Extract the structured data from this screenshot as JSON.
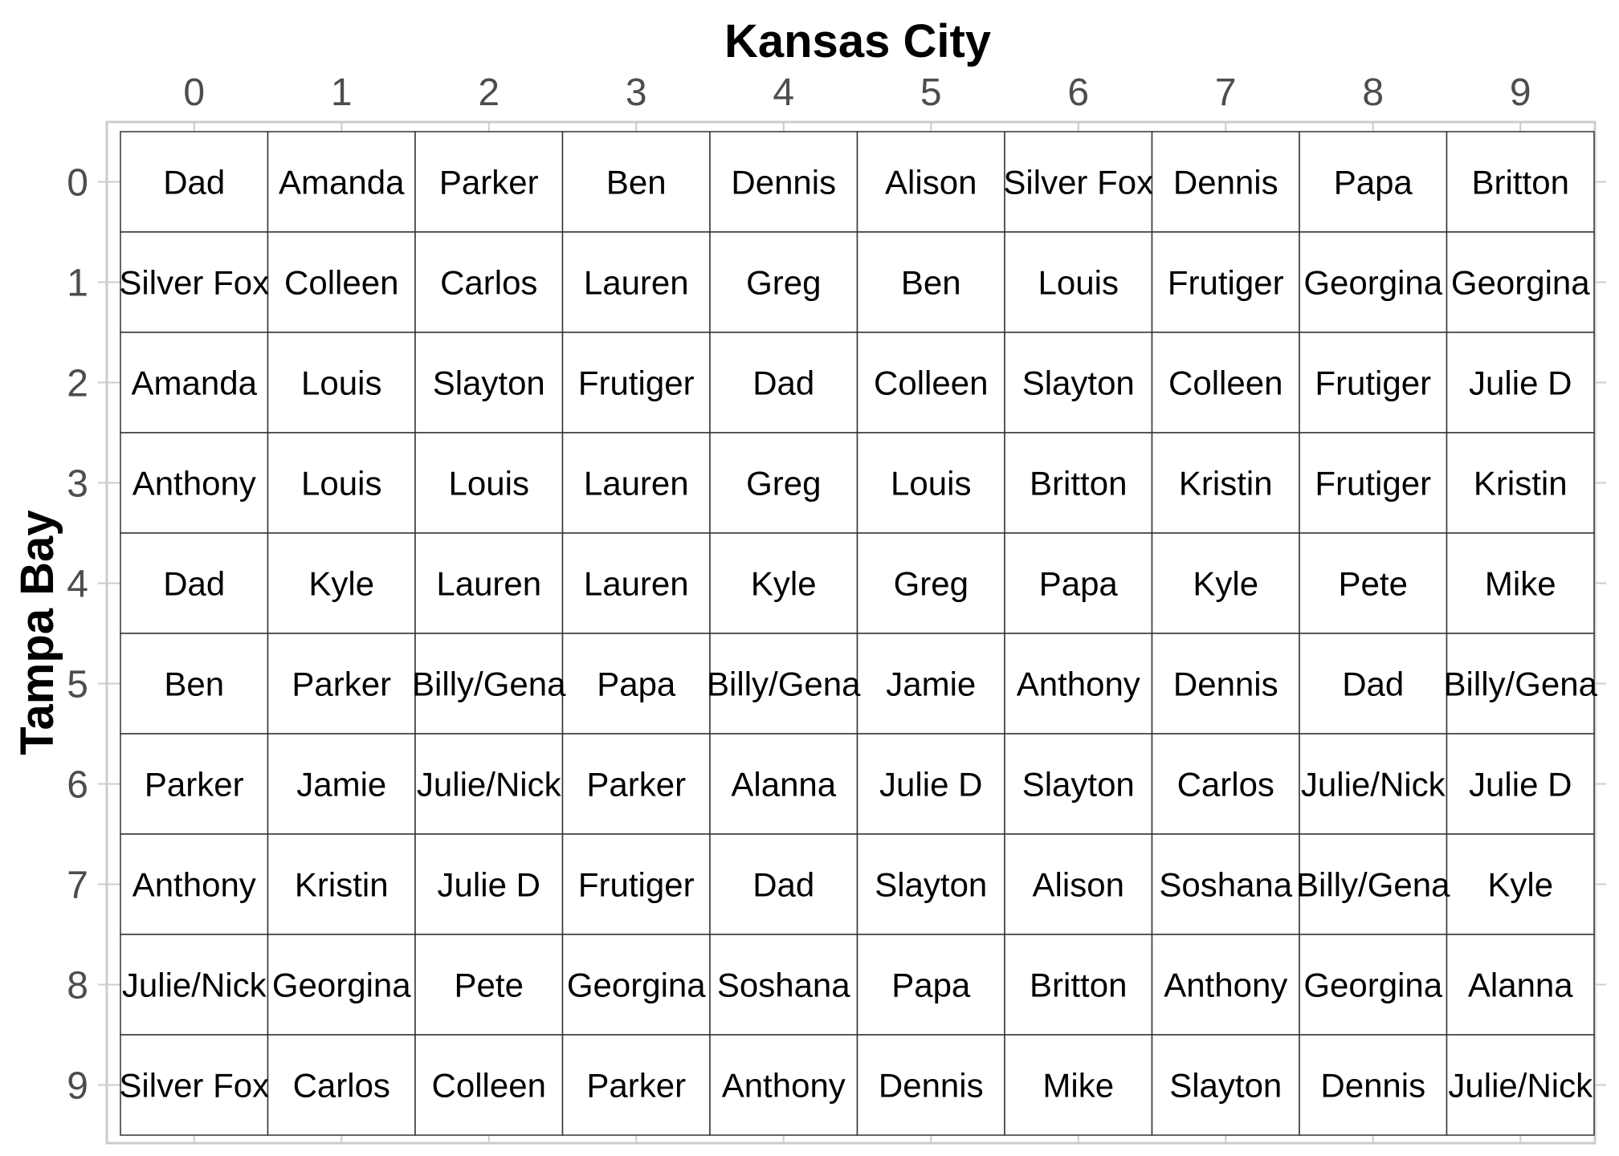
{
  "chart_data": {
    "type": "table",
    "xlabel": "Kansas City",
    "ylabel": "Tampa Bay",
    "x_ticks": [
      "0",
      "1",
      "2",
      "3",
      "4",
      "5",
      "6",
      "7",
      "8",
      "9"
    ],
    "y_ticks": [
      "0",
      "1",
      "2",
      "3",
      "4",
      "5",
      "6",
      "7",
      "8",
      "9"
    ],
    "x_axis_position": "top",
    "grid": true,
    "rows": [
      [
        "Dad",
        "Amanda",
        "Parker",
        "Ben",
        "Dennis",
        "Alison",
        "Silver Fox",
        "Dennis",
        "Papa",
        "Britton"
      ],
      [
        "Silver Fox",
        "Colleen",
        "Carlos",
        "Lauren",
        "Greg",
        "Ben",
        "Louis",
        "Frutiger",
        "Georgina",
        "Georgina"
      ],
      [
        "Amanda",
        "Louis",
        "Slayton",
        "Frutiger",
        "Dad",
        "Colleen",
        "Slayton",
        "Colleen",
        "Frutiger",
        "Julie D"
      ],
      [
        "Anthony",
        "Louis",
        "Louis",
        "Lauren",
        "Greg",
        "Louis",
        "Britton",
        "Kristin",
        "Frutiger",
        "Kristin"
      ],
      [
        "Dad",
        "Kyle",
        "Lauren",
        "Lauren",
        "Kyle",
        "Greg",
        "Papa",
        "Kyle",
        "Pete",
        "Mike"
      ],
      [
        "Ben",
        "Parker",
        "Billy/Gena",
        "Papa",
        "Billy/Gena",
        "Jamie",
        "Anthony",
        "Dennis",
        "Dad",
        "Billy/Gena"
      ],
      [
        "Parker",
        "Jamie",
        "Julie/Nick",
        "Parker",
        "Alanna",
        "Julie D",
        "Slayton",
        "Carlos",
        "Julie/Nick",
        "Julie D"
      ],
      [
        "Anthony",
        "Kristin",
        "Julie D",
        "Frutiger",
        "Dad",
        "Slayton",
        "Alison",
        "Soshana",
        "Billy/Gena",
        "Kyle"
      ],
      [
        "Julie/Nick",
        "Georgina",
        "Pete",
        "Georgina",
        "Soshana",
        "Papa",
        "Britton",
        "Anthony",
        "Georgina",
        "Alanna"
      ],
      [
        "Silver Fox",
        "Carlos",
        "Colleen",
        "Parker",
        "Anthony",
        "Dennis",
        "Mike",
        "Slayton",
        "Dennis",
        "Julie/Nick"
      ]
    ],
    "colors": {
      "background": "#ffffff",
      "panel_border": "#cccccc",
      "cell_border": "#333333",
      "tick_text": "#4d4d4d",
      "cell_text": "#000000"
    }
  }
}
